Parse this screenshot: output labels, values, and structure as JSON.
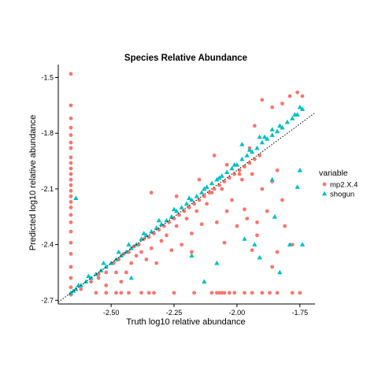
{
  "chart_data": {
    "type": "scatter",
    "title": "Species Relative Abundance",
    "xlabel": "Truth log10 relative abundance",
    "ylabel": "Predicted log10 relative abundance",
    "xlim": [
      -2.71,
      -1.69
    ],
    "ylim": [
      -2.72,
      -1.43
    ],
    "xticks": [
      -2.5,
      -2.25,
      -2.0,
      -1.75
    ],
    "xtick_labels": [
      "-2.50",
      "-2.25",
      "-2.00",
      "-1.75"
    ],
    "yticks": [
      -2.7,
      -2.4,
      -2.1,
      -1.8,
      -1.5
    ],
    "ytick_labels": [
      "-2.7",
      "-2.4",
      "-2.1",
      "-1.8",
      "-1.5"
    ],
    "grid": false,
    "reference_line": {
      "style": "dotted",
      "x": [
        -2.71,
        -1.69
      ],
      "y": [
        -2.71,
        -1.69
      ]
    },
    "legend": {
      "title": "variable",
      "position": "right"
    },
    "series": [
      {
        "name": "mp2.X.4",
        "color": "#F8766D",
        "marker": "circle",
        "points": [
          [
            -2.66,
            -1.48
          ],
          [
            -2.66,
            -1.65
          ],
          [
            -2.66,
            -1.72
          ],
          [
            -2.66,
            -1.77
          ],
          [
            -2.66,
            -1.81
          ],
          [
            -2.66,
            -1.85
          ],
          [
            -2.66,
            -1.88
          ],
          [
            -2.66,
            -1.93
          ],
          [
            -2.66,
            -1.96
          ],
          [
            -2.66,
            -1.99
          ],
          [
            -2.66,
            -2.02
          ],
          [
            -2.66,
            -2.05
          ],
          [
            -2.66,
            -2.08
          ],
          [
            -2.66,
            -2.11
          ],
          [
            -2.66,
            -2.14
          ],
          [
            -2.66,
            -2.17
          ],
          [
            -2.66,
            -2.2
          ],
          [
            -2.66,
            -2.24
          ],
          [
            -2.66,
            -2.28
          ],
          [
            -2.66,
            -2.33
          ],
          [
            -2.66,
            -2.39
          ],
          [
            -2.66,
            -2.45
          ],
          [
            -2.66,
            -2.52
          ],
          [
            -2.66,
            -2.58
          ],
          [
            -2.66,
            -2.63
          ],
          [
            -2.66,
            -2.67
          ],
          [
            -2.62,
            -2.64
          ],
          [
            -2.58,
            -2.6
          ],
          [
            -2.55,
            -2.56
          ],
          [
            -2.52,
            -2.55
          ],
          [
            -2.49,
            -2.5
          ],
          [
            -2.47,
            -2.48
          ],
          [
            -2.45,
            -2.45
          ],
          [
            -2.43,
            -2.44
          ],
          [
            -2.41,
            -2.41
          ],
          [
            -2.39,
            -2.4
          ],
          [
            -2.37,
            -2.37
          ],
          [
            -2.35,
            -2.36
          ],
          [
            -2.33,
            -2.34
          ],
          [
            -2.31,
            -2.32
          ],
          [
            -2.29,
            -2.3
          ],
          [
            -2.27,
            -2.28
          ],
          [
            -2.25,
            -2.26
          ],
          [
            -2.23,
            -2.24
          ],
          [
            -2.21,
            -2.22
          ],
          [
            -2.19,
            -2.2
          ],
          [
            -2.17,
            -2.18
          ],
          [
            -2.15,
            -2.16
          ],
          [
            -2.13,
            -2.14
          ],
          [
            -2.11,
            -2.12
          ],
          [
            -2.09,
            -2.1
          ],
          [
            -2.07,
            -2.08
          ],
          [
            -2.05,
            -2.06
          ],
          [
            -2.03,
            -2.04
          ],
          [
            -2.01,
            -2.02
          ],
          [
            -1.99,
            -2.0
          ],
          [
            -1.97,
            -1.98
          ],
          [
            -1.95,
            -1.96
          ],
          [
            -1.93,
            -1.94
          ],
          [
            -1.91,
            -1.92
          ],
          [
            -2.55,
            -2.58
          ],
          [
            -2.52,
            -2.62
          ],
          [
            -2.48,
            -2.55
          ],
          [
            -2.46,
            -2.6
          ],
          [
            -2.44,
            -2.55
          ],
          [
            -2.42,
            -2.5
          ],
          [
            -2.4,
            -2.46
          ],
          [
            -2.38,
            -2.44
          ],
          [
            -2.36,
            -2.48
          ],
          [
            -2.34,
            -2.42
          ],
          [
            -2.32,
            -2.5
          ],
          [
            -2.3,
            -2.38
          ],
          [
            -2.28,
            -2.35
          ],
          [
            -2.26,
            -2.43
          ],
          [
            -2.24,
            -2.3
          ],
          [
            -2.22,
            -2.4
          ],
          [
            -2.2,
            -2.26
          ],
          [
            -2.18,
            -2.34
          ],
          [
            -2.16,
            -2.22
          ],
          [
            -2.14,
            -2.29
          ],
          [
            -2.12,
            -2.18
          ],
          [
            -2.1,
            -2.12
          ],
          [
            -2.08,
            -2.28
          ],
          [
            -2.06,
            -2.1
          ],
          [
            -2.04,
            -2.22
          ],
          [
            -2.02,
            -2.16
          ],
          [
            -2.0,
            -2.3
          ],
          [
            -1.98,
            -2.05
          ],
          [
            -1.96,
            -2.26
          ],
          [
            -1.94,
            -2.02
          ],
          [
            -1.92,
            -2.35
          ],
          [
            -1.9,
            -2.1
          ],
          [
            -1.88,
            -2.22
          ],
          [
            -1.86,
            -2.06
          ],
          [
            -1.84,
            -2.0
          ],
          [
            -1.82,
            -2.16
          ],
          [
            -2.34,
            -2.12
          ],
          [
            -2.24,
            -2.14
          ],
          [
            -2.15,
            -2.05
          ],
          [
            -2.09,
            -1.92
          ],
          [
            -2.04,
            -1.97
          ],
          [
            -1.99,
            -2.02
          ],
          [
            -1.95,
            -1.88
          ],
          [
            -1.93,
            -1.76
          ],
          [
            -1.9,
            -1.62
          ],
          [
            -1.86,
            -1.66
          ],
          [
            -1.82,
            -1.64
          ],
          [
            -1.79,
            -1.6
          ],
          [
            -1.76,
            -1.58
          ],
          [
            -1.74,
            -1.6
          ],
          [
            -1.97,
            -2.21
          ],
          [
            -1.94,
            -2.43
          ],
          [
            -1.92,
            -2.28
          ],
          [
            -1.86,
            -2.52
          ],
          [
            -1.84,
            -2.44
          ],
          [
            -1.81,
            -2.3
          ],
          [
            -1.78,
            -2.4
          ],
          [
            -2.05,
            -2.39
          ],
          [
            -2.18,
            -2.44
          ],
          [
            -2.56,
            -2.66
          ],
          [
            -2.52,
            -2.66
          ],
          [
            -2.48,
            -2.66
          ],
          [
            -2.46,
            -2.66
          ],
          [
            -2.43,
            -2.66
          ],
          [
            -2.38,
            -2.66
          ],
          [
            -2.35,
            -2.66
          ],
          [
            -2.33,
            -2.66
          ],
          [
            -2.25,
            -2.66
          ],
          [
            -2.17,
            -2.66
          ],
          [
            -2.1,
            -2.66
          ],
          [
            -2.08,
            -2.66
          ],
          [
            -2.07,
            -2.66
          ],
          [
            -2.06,
            -2.66
          ],
          [
            -2.05,
            -2.66
          ],
          [
            -2.03,
            -2.66
          ],
          [
            -2.01,
            -2.66
          ],
          [
            -1.97,
            -2.66
          ],
          [
            -1.94,
            -2.66
          ],
          [
            -1.9,
            -2.66
          ],
          [
            -1.87,
            -2.66
          ],
          [
            -1.84,
            -2.66
          ],
          [
            -1.78,
            -2.66
          ],
          [
            -1.75,
            -2.66
          ]
        ]
      },
      {
        "name": "shogun",
        "color": "#00BFC4",
        "marker": "triangle",
        "points": [
          [
            -2.66,
            -2.66
          ],
          [
            -2.65,
            -2.65
          ],
          [
            -2.64,
            -2.64
          ],
          [
            -2.62,
            -2.62
          ],
          [
            -2.6,
            -2.6
          ],
          [
            -2.58,
            -2.58
          ],
          [
            -2.56,
            -2.56
          ],
          [
            -2.54,
            -2.54
          ],
          [
            -2.52,
            -2.52
          ],
          [
            -2.5,
            -2.5
          ],
          [
            -2.48,
            -2.48
          ],
          [
            -2.46,
            -2.46
          ],
          [
            -2.44,
            -2.44
          ],
          [
            -2.42,
            -2.42
          ],
          [
            -2.4,
            -2.4
          ],
          [
            -2.38,
            -2.37
          ],
          [
            -2.36,
            -2.35
          ],
          [
            -2.34,
            -2.33
          ],
          [
            -2.32,
            -2.31
          ],
          [
            -2.3,
            -2.29
          ],
          [
            -2.28,
            -2.27
          ],
          [
            -2.26,
            -2.25
          ],
          [
            -2.24,
            -2.22
          ],
          [
            -2.22,
            -2.2
          ],
          [
            -2.2,
            -2.18
          ],
          [
            -2.18,
            -2.16
          ],
          [
            -2.16,
            -2.14
          ],
          [
            -2.14,
            -2.12
          ],
          [
            -2.12,
            -2.09
          ],
          [
            -2.1,
            -2.07
          ],
          [
            -2.08,
            -2.05
          ],
          [
            -2.06,
            -2.03
          ],
          [
            -2.04,
            -2.01
          ],
          [
            -2.02,
            -1.99
          ],
          [
            -2.0,
            -1.97
          ],
          [
            -1.98,
            -1.94
          ],
          [
            -1.96,
            -1.92
          ],
          [
            -1.94,
            -1.9
          ],
          [
            -1.92,
            -1.88
          ],
          [
            -1.9,
            -1.85
          ],
          [
            -1.88,
            -1.83
          ],
          [
            -1.86,
            -1.81
          ],
          [
            -1.84,
            -1.79
          ],
          [
            -1.82,
            -1.77
          ],
          [
            -1.8,
            -1.74
          ],
          [
            -1.78,
            -1.72
          ],
          [
            -1.76,
            -1.7
          ],
          [
            -1.74,
            -1.67
          ],
          [
            -2.63,
            -2.62
          ],
          [
            -2.59,
            -2.57
          ],
          [
            -2.53,
            -2.5
          ],
          [
            -2.47,
            -2.44
          ],
          [
            -2.43,
            -2.4
          ],
          [
            -2.37,
            -2.34
          ],
          [
            -2.31,
            -2.27
          ],
          [
            -2.25,
            -2.21
          ],
          [
            -2.19,
            -2.15
          ],
          [
            -2.13,
            -2.1
          ],
          [
            -2.07,
            -2.04
          ],
          [
            -2.01,
            -1.97
          ],
          [
            -1.95,
            -1.89
          ],
          [
            -1.89,
            -1.82
          ],
          [
            -1.83,
            -1.76
          ],
          [
            -1.77,
            -1.7
          ],
          [
            -1.75,
            -1.66
          ],
          [
            -2.64,
            -2.15
          ],
          [
            -1.98,
            -1.86
          ],
          [
            -1.91,
            -1.82
          ],
          [
            -1.86,
            -1.78
          ],
          [
            -2.18,
            -2.46
          ],
          [
            -2.13,
            -2.6
          ],
          [
            -2.08,
            -2.5
          ],
          [
            -1.97,
            -2.37
          ],
          [
            -1.93,
            -2.4
          ],
          [
            -1.91,
            -2.47
          ],
          [
            -1.86,
            -2.05
          ],
          [
            -1.85,
            -2.25
          ],
          [
            -1.83,
            -2.55
          ],
          [
            -1.79,
            -2.4
          ],
          [
            -1.76,
            -2.09
          ],
          [
            -1.75,
            -2.0
          ],
          [
            -1.74,
            -2.4
          ],
          [
            -2.42,
            -2.58
          ]
        ]
      }
    ]
  }
}
